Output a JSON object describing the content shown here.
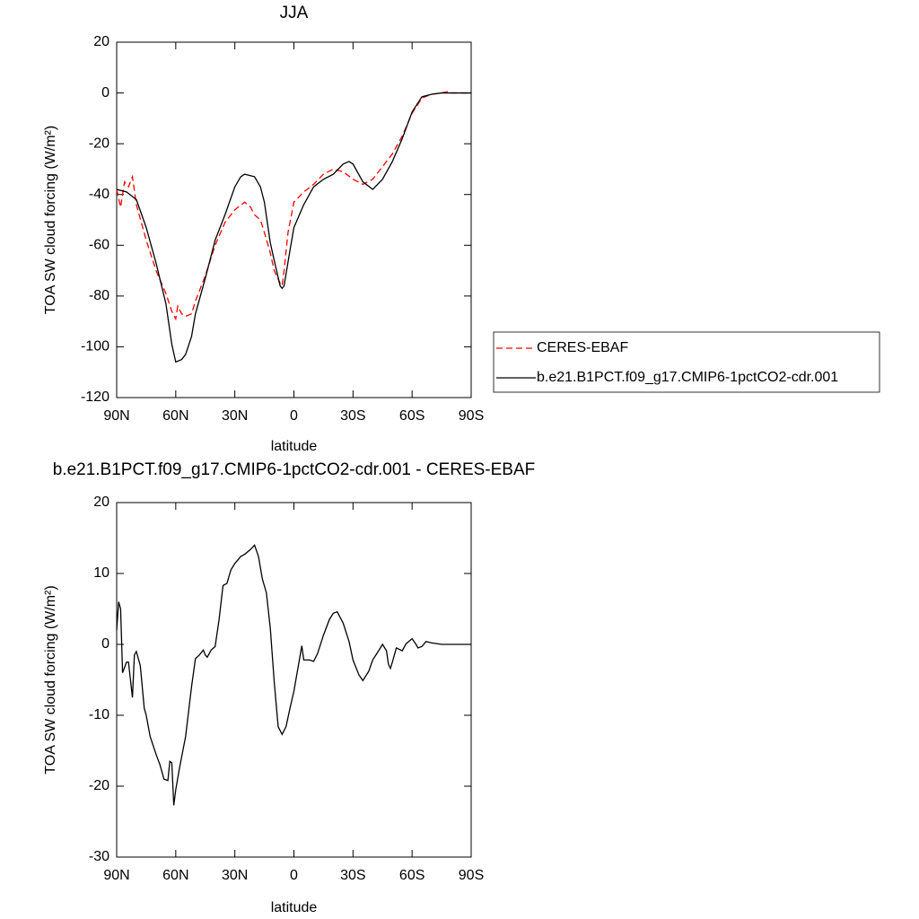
{
  "chart_data": [
    {
      "type": "line",
      "title": "JJA",
      "xlabel": "latitude",
      "ylabel": "TOA SW cloud forcing (W/m²)",
      "xlim": [
        90,
        -90
      ],
      "xticks": [
        {
          "value": 90,
          "label": "90N"
        },
        {
          "value": 60,
          "label": "60N"
        },
        {
          "value": 30,
          "label": "30N"
        },
        0,
        {
          "value": -30,
          "label": "30S"
        },
        {
          "value": -60,
          "label": "60S"
        },
        {
          "value": -90,
          "label": "90S"
        }
      ],
      "ylim": [
        -120,
        20
      ],
      "yticks": [
        20,
        0,
        -20,
        -40,
        -60,
        -80,
        -100,
        -120
      ],
      "legend": "right",
      "series": [
        {
          "name": "CERES-EBAF",
          "color": "#ff0000",
          "line_style": "dashed",
          "x": [
            90,
            88,
            86,
            84,
            82,
            80,
            75,
            70,
            65,
            62,
            60,
            59,
            57,
            55,
            52,
            50,
            45,
            40,
            35,
            30,
            25,
            22,
            20,
            17,
            15,
            12,
            10,
            7,
            6,
            5,
            3,
            0,
            -5,
            -10,
            -15,
            -20,
            -25,
            -30,
            -35,
            -40,
            -45,
            -50,
            -55,
            -60,
            -65,
            -70,
            -75,
            -78,
            -80,
            -90
          ],
          "values": [
            -38,
            -45,
            -35,
            -37,
            -33,
            -44,
            -58,
            -70,
            -79,
            -86,
            -89,
            -84,
            -87,
            -88,
            -87,
            -82,
            -72,
            -60,
            -51,
            -46,
            -43,
            -45,
            -48,
            -50,
            -55,
            -63,
            -70,
            -75,
            -76,
            -70,
            -55,
            -43,
            -39,
            -36,
            -32,
            -30,
            -31,
            -34,
            -36,
            -34,
            -29,
            -24,
            -17,
            -8,
            -2,
            -0.5,
            0,
            0.5,
            0,
            0
          ]
        },
        {
          "name": "b.e21.B1PCT.f09_g17.CMIP6-1pctCO2-cdr.001",
          "color": "#000000",
          "line_style": "solid",
          "x": [
            90,
            85,
            80,
            75,
            70,
            65,
            62,
            60,
            57,
            55,
            52,
            50,
            45,
            40,
            35,
            30,
            27,
            25,
            20,
            17,
            15,
            12,
            10,
            7,
            6,
            5,
            2,
            0,
            -5,
            -10,
            -15,
            -20,
            -25,
            -28,
            -30,
            -35,
            -40,
            -45,
            -50,
            -55,
            -60,
            -65,
            -70,
            -75,
            -90
          ],
          "values": [
            -38,
            -39,
            -42,
            -53,
            -67,
            -83,
            -99,
            -106,
            -105,
            -103,
            -96,
            -87,
            -73,
            -58,
            -48,
            -37,
            -33,
            -32,
            -33,
            -37,
            -43,
            -59,
            -66,
            -76,
            -77,
            -76,
            -62,
            -53,
            -44,
            -37,
            -34,
            -32,
            -28,
            -27,
            -28,
            -35,
            -38,
            -34,
            -27,
            -18,
            -7.5,
            -1.5,
            -0.5,
            0,
            0
          ]
        }
      ]
    },
    {
      "type": "line",
      "title": "b.e21.B1PCT.f09_g17.CMIP6-1pctCO2-cdr.001 - CERES-EBAF",
      "xlabel": "latitude",
      "ylabel": "TOA SW cloud forcing (W/m²)",
      "xlim": [
        90,
        -90
      ],
      "xticks": [
        {
          "value": 90,
          "label": "90N"
        },
        {
          "value": 60,
          "label": "60N"
        },
        {
          "value": 30,
          "label": "30N"
        },
        0,
        {
          "value": -30,
          "label": "30S"
        },
        {
          "value": -60,
          "label": "60S"
        },
        {
          "value": -90,
          "label": "90S"
        }
      ],
      "ylim": [
        -30,
        20
      ],
      "yticks": [
        20,
        10,
        0,
        -10,
        -20,
        -30
      ],
      "series": [
        {
          "color": "#000000",
          "line_style": "solid",
          "x": [
            90,
            89,
            88,
            87,
            85,
            84,
            82,
            81,
            80,
            78,
            76,
            75,
            73,
            70,
            68,
            66,
            64,
            63,
            62,
            61,
            60,
            58,
            55,
            52,
            50,
            48,
            46,
            45,
            44,
            42,
            40,
            38,
            36,
            34,
            32,
            30,
            27,
            25,
            22,
            20,
            18,
            16,
            14,
            12,
            10,
            8,
            6,
            4,
            2,
            0,
            -2,
            -4,
            -5,
            -8,
            -10,
            -12,
            -15,
            -18,
            -20,
            -22,
            -25,
            -28,
            -30,
            -33,
            -35,
            -38,
            -40,
            -43,
            -45,
            -47,
            -48,
            -49,
            -50,
            -52,
            -55,
            -57,
            -60,
            -62,
            -63,
            -65,
            -67,
            -70,
            -75,
            -90
          ],
          "values": [
            2,
            6,
            5,
            -4,
            -2.5,
            -2.5,
            -7.5,
            -1.5,
            -1,
            -3,
            -9,
            -10,
            -13,
            -15.5,
            -17,
            -19,
            -19.2,
            -16.5,
            -16.7,
            -22.7,
            -20.5,
            -17.3,
            -13,
            -6,
            -2,
            -1.5,
            -0.8,
            -1.5,
            -1.8,
            -0.8,
            -0.3,
            3.5,
            8.3,
            8.6,
            10.5,
            11.4,
            12.4,
            12.7,
            13.4,
            14,
            12.4,
            9.2,
            7.3,
            2.3,
            -5.3,
            -11.6,
            -12.7,
            -11.6,
            -9,
            -6.6,
            -3.4,
            -0.2,
            -2.2,
            -2.2,
            -2.4,
            -1.3,
            1.3,
            3.5,
            4.4,
            4.6,
            3,
            0.4,
            -2.2,
            -4.3,
            -5.1,
            -3.8,
            -2.2,
            -0.9,
            0,
            -0.9,
            -2.8,
            -3.4,
            -2.5,
            -0.5,
            -0.9,
            0.1,
            0.8,
            0,
            -0.5,
            -0.3,
            0.4,
            0.2,
            0,
            0
          ]
        }
      ]
    }
  ]
}
